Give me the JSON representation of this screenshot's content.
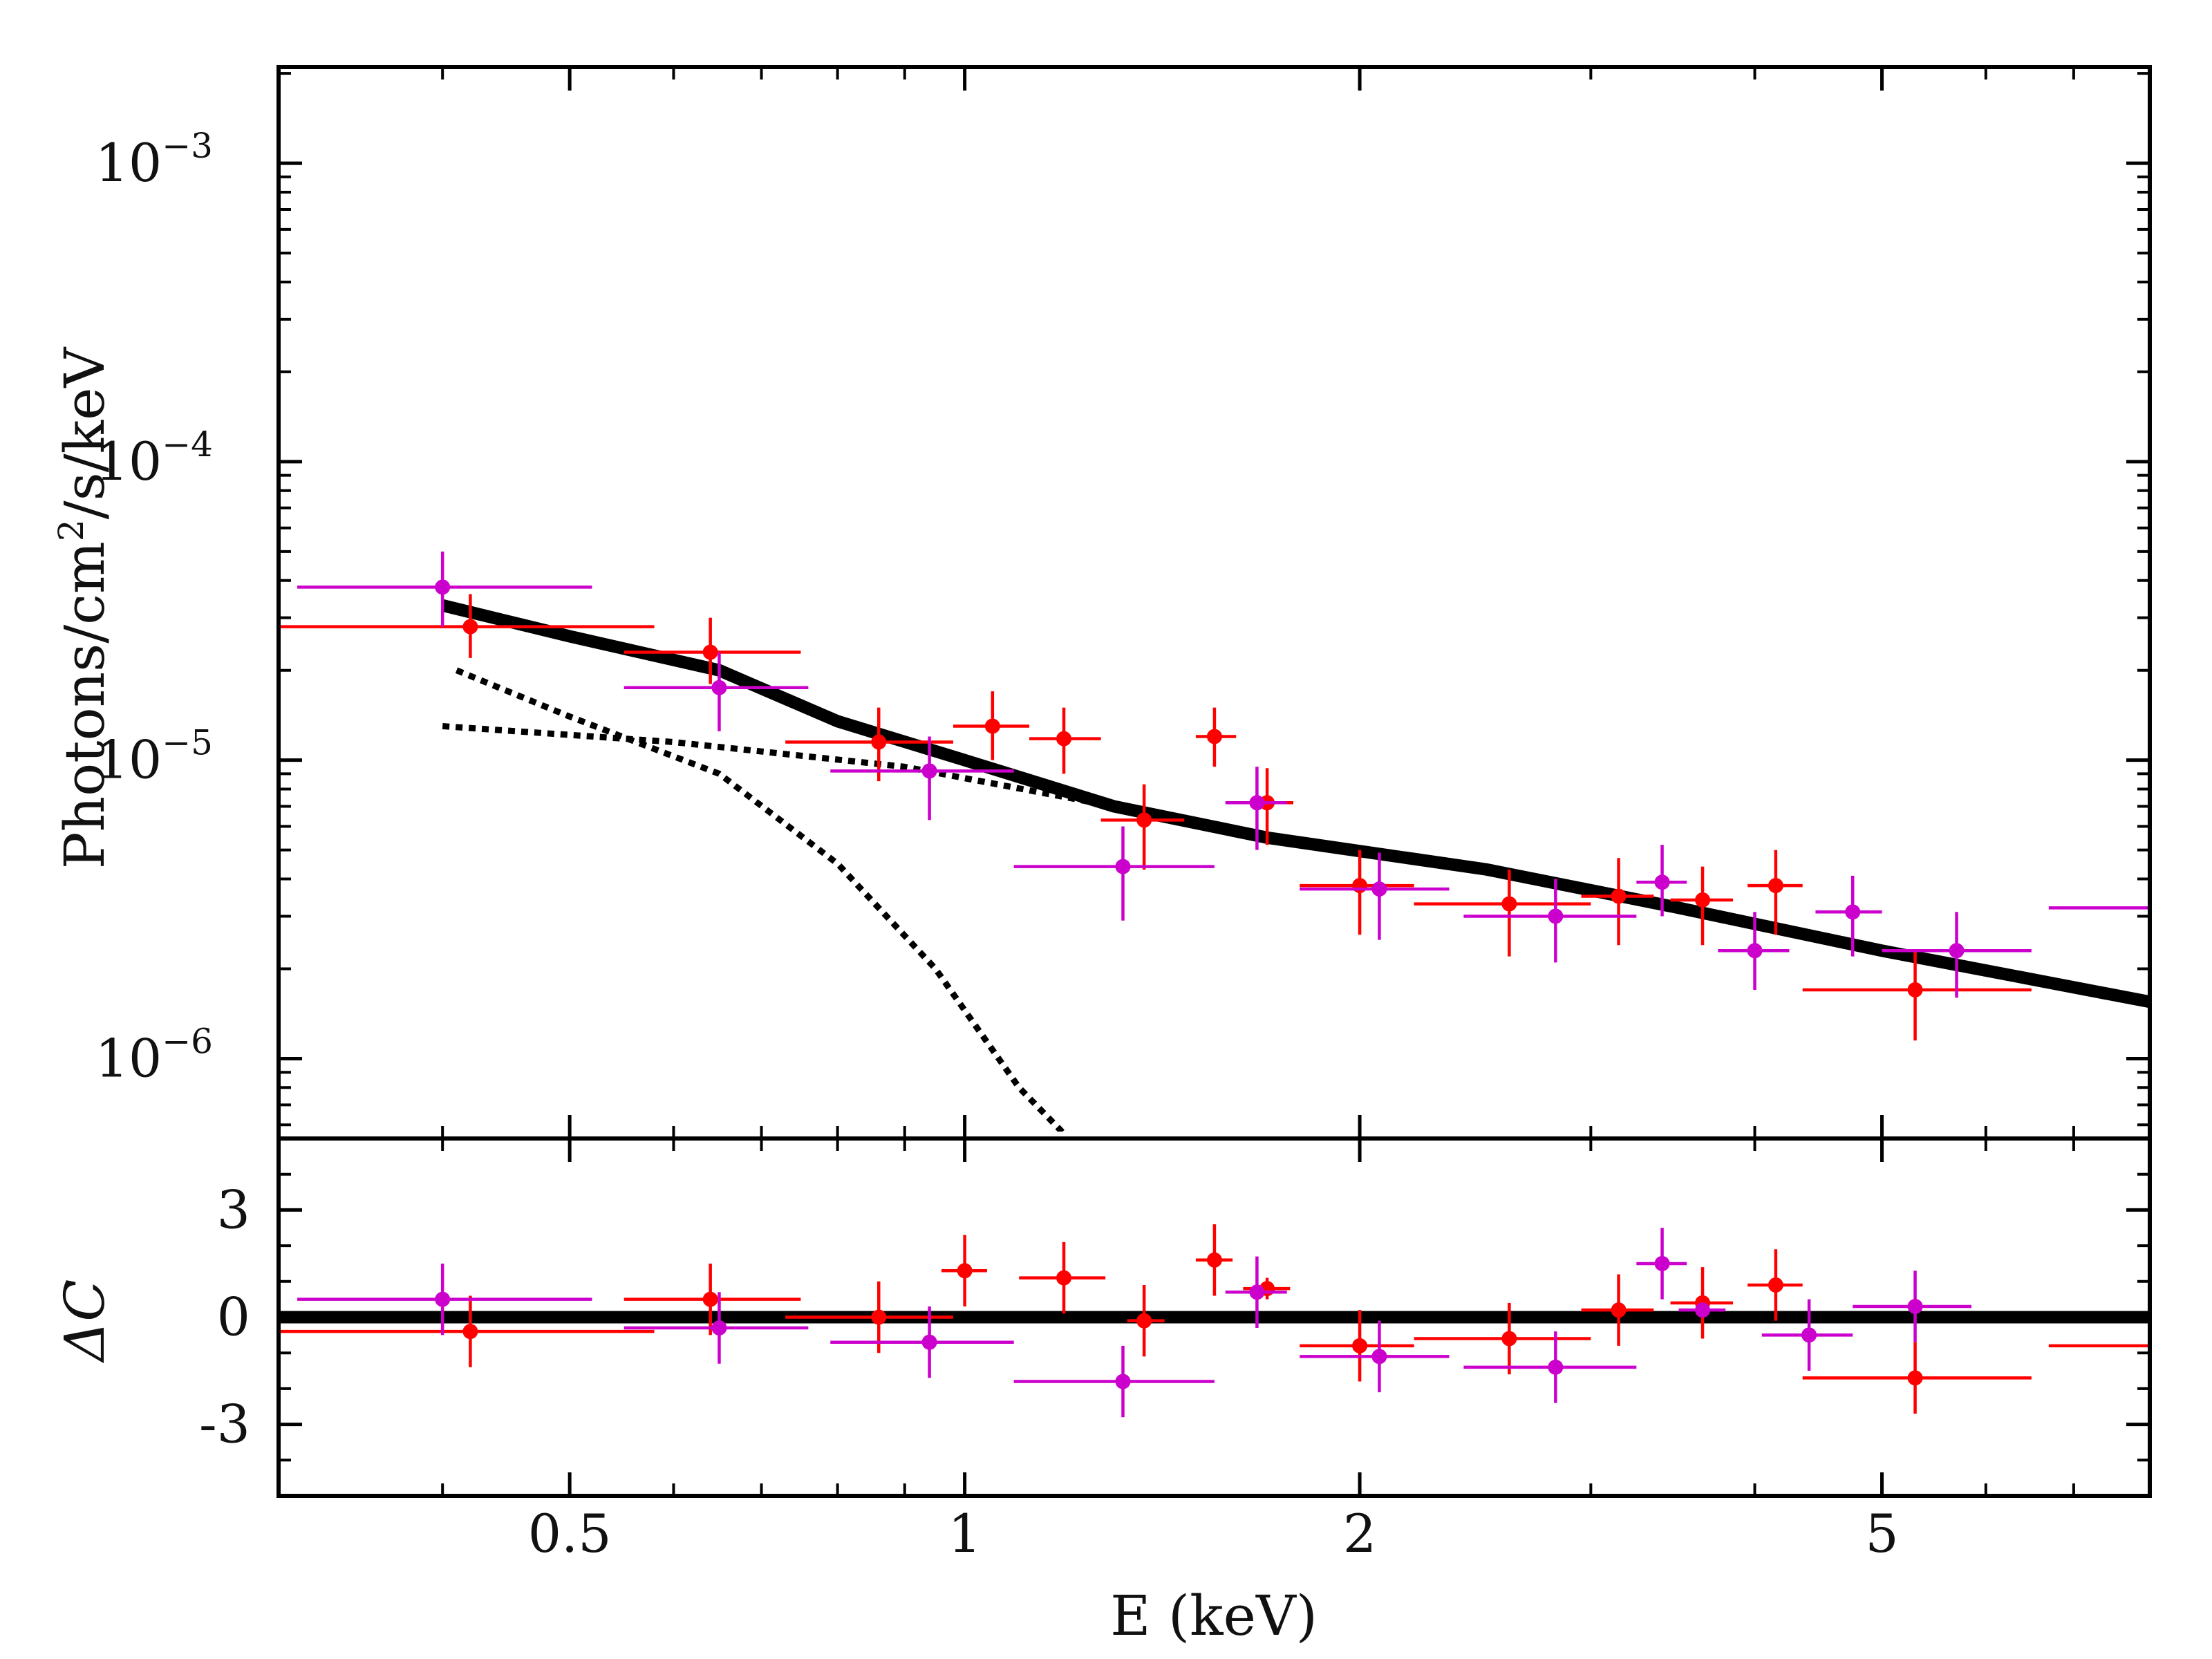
{
  "chart_data": {
    "type": "scatter",
    "colors": {
      "series_red": "#ff0000",
      "series_magenta": "#cc00cc",
      "model": "#000000"
    },
    "x_axis": {
      "label": "E (keV)",
      "scale": "log",
      "range": [
        0.3,
        8.0
      ],
      "ticks": [
        {
          "value": 0.5,
          "label": "0.5"
        },
        {
          "value": 1,
          "label": "1"
        },
        {
          "value": 2,
          "label": "2"
        },
        {
          "value": 5,
          "label": "5"
        }
      ]
    },
    "top_panel": {
      "ylabel": {
        "text": "Photons/cm",
        "sup": "2",
        "rest": "/s/keV"
      },
      "yscale": "log",
      "ylim": [
        5.4e-07,
        0.0021
      ],
      "yticks": [
        {
          "value": 0.001,
          "base": "10",
          "exp": "−3"
        },
        {
          "value": 0.0001,
          "base": "10",
          "exp": "−4"
        },
        {
          "value": 1e-05,
          "base": "10",
          "exp": "−5"
        },
        {
          "value": 1e-06,
          "base": "10",
          "exp": "−6"
        }
      ],
      "model_total": [
        [
          0.4,
          3.3e-05
        ],
        [
          0.5,
          2.6e-05
        ],
        [
          0.65,
          2e-05
        ],
        [
          0.8,
          1.35e-05
        ],
        [
          1.0,
          1e-05
        ],
        [
          1.3,
          7e-06
        ],
        [
          1.7,
          5.5e-06
        ],
        [
          2.5,
          4.3e-06
        ],
        [
          3.5,
          3.2e-06
        ],
        [
          5.0,
          2.3e-06
        ],
        [
          8.0,
          1.55e-06
        ]
      ],
      "model_components": [
        {
          "name": "soft component",
          "points": [
            [
              0.41,
              2e-05
            ],
            [
              0.5,
              1.4e-05
            ],
            [
              0.65,
              9e-06
            ],
            [
              0.8,
              4.5e-06
            ],
            [
              0.95,
              2e-06
            ],
            [
              1.1,
              8e-07
            ],
            [
              1.2,
              5.4e-07
            ]
          ]
        },
        {
          "name": "power-law component",
          "points": [
            [
              0.4,
              1.3e-05
            ],
            [
              0.6,
              1.15e-05
            ],
            [
              0.9,
              9.5e-06
            ],
            [
              1.3,
              7e-06
            ]
          ]
        }
      ],
      "series": [
        {
          "name": "red",
          "points": [
            {
              "x": 0.42,
              "xlo": 0.3,
              "xhi": 0.58,
              "y": 2.8e-05,
              "ylo": 2.2e-05,
              "yhi": 3.6e-05
            },
            {
              "x": 0.64,
              "xlo": 0.55,
              "xhi": 0.75,
              "y": 2.3e-05,
              "ylo": 1.8e-05,
              "yhi": 3e-05
            },
            {
              "x": 0.86,
              "xlo": 0.73,
              "xhi": 0.98,
              "y": 1.15e-05,
              "ylo": 8.5e-06,
              "yhi": 1.5e-05
            },
            {
              "x": 1.05,
              "xlo": 0.98,
              "xhi": 1.12,
              "y": 1.3e-05,
              "ylo": 1e-05,
              "yhi": 1.7e-05
            },
            {
              "x": 1.19,
              "xlo": 1.12,
              "xhi": 1.27,
              "y": 1.18e-05,
              "ylo": 9e-06,
              "yhi": 1.5e-05
            },
            {
              "x": 1.37,
              "xlo": 1.27,
              "xhi": 1.47,
              "y": 6.3e-06,
              "ylo": 4.3e-06,
              "yhi": 8.3e-06
            },
            {
              "x": 1.55,
              "xlo": 1.5,
              "xhi": 1.61,
              "y": 1.2e-05,
              "ylo": 9.5e-06,
              "yhi": 1.5e-05
            },
            {
              "x": 1.7,
              "xlo": 1.62,
              "xhi": 1.78,
              "y": 7.2e-06,
              "ylo": 5.2e-06,
              "yhi": 9.4e-06
            },
            {
              "x": 2.0,
              "xlo": 1.8,
              "xhi": 2.2,
              "y": 3.8e-06,
              "ylo": 2.6e-06,
              "yhi": 5e-06
            },
            {
              "x": 2.6,
              "xlo": 2.2,
              "xhi": 3.0,
              "y": 3.3e-06,
              "ylo": 2.2e-06,
              "yhi": 4.3e-06
            },
            {
              "x": 3.15,
              "xlo": 2.95,
              "xhi": 3.35,
              "y": 3.5e-06,
              "ylo": 2.4e-06,
              "yhi": 4.7e-06
            },
            {
              "x": 3.65,
              "xlo": 3.45,
              "xhi": 3.85,
              "y": 3.4e-06,
              "ylo": 2.4e-06,
              "yhi": 4.4e-06
            },
            {
              "x": 4.15,
              "xlo": 3.95,
              "xhi": 4.35,
              "y": 3.8e-06,
              "ylo": 2.6e-06,
              "yhi": 5e-06
            },
            {
              "x": 5.3,
              "xlo": 4.35,
              "xhi": 6.5,
              "y": 1.7e-06,
              "ylo": 1.15e-06,
              "yhi": 2.3e-06
            }
          ]
        },
        {
          "name": "magenta",
          "points": [
            {
              "x": 0.4,
              "xlo": 0.31,
              "xhi": 0.52,
              "y": 3.8e-05,
              "ylo": 2.8e-05,
              "yhi": 5e-05
            },
            {
              "x": 0.65,
              "xlo": 0.55,
              "xhi": 0.76,
              "y": 1.75e-05,
              "ylo": 1.25e-05,
              "yhi": 2.3e-05
            },
            {
              "x": 0.94,
              "xlo": 0.79,
              "xhi": 1.09,
              "y": 9.2e-06,
              "ylo": 6.3e-06,
              "yhi": 1.2e-05
            },
            {
              "x": 1.32,
              "xlo": 1.09,
              "xhi": 1.55,
              "y": 4.4e-06,
              "ylo": 2.9e-06,
              "yhi": 6e-06
            },
            {
              "x": 1.67,
              "xlo": 1.58,
              "xhi": 1.76,
              "y": 7.2e-06,
              "ylo": 5e-06,
              "yhi": 9.5e-06
            },
            {
              "x": 2.07,
              "xlo": 1.8,
              "xhi": 2.34,
              "y": 3.7e-06,
              "ylo": 2.5e-06,
              "yhi": 4.9e-06
            },
            {
              "x": 2.82,
              "xlo": 2.4,
              "xhi": 3.25,
              "y": 3e-06,
              "ylo": 2.1e-06,
              "yhi": 4e-06
            },
            {
              "x": 3.4,
              "xlo": 3.25,
              "xhi": 3.55,
              "y": 3.9e-06,
              "ylo": 3e-06,
              "yhi": 5.2e-06
            },
            {
              "x": 4.0,
              "xlo": 3.75,
              "xhi": 4.25,
              "y": 2.3e-06,
              "ylo": 1.7e-06,
              "yhi": 3.1e-06
            },
            {
              "x": 4.75,
              "xlo": 4.45,
              "xhi": 5.0,
              "y": 3.1e-06,
              "ylo": 2.2e-06,
              "yhi": 4.1e-06
            },
            {
              "x": 5.7,
              "xlo": 5.0,
              "xhi": 6.5,
              "y": 2.3e-06,
              "ylo": 1.6e-06,
              "yhi": 3.1e-06
            },
            {
              "x": 8.0,
              "xlo": 6.7,
              "xhi": 8.0,
              "y": 3.2e-06,
              "ylo": 3.2e-06,
              "yhi": 3.2e-06
            }
          ]
        }
      ]
    },
    "bottom_panel": {
      "ylabel": "ΔC",
      "ylim": [
        -5,
        5
      ],
      "yticks": [
        {
          "value": 3,
          "label": "3"
        },
        {
          "value": 0,
          "label": "0"
        },
        {
          "value": -3,
          "label": "-3"
        }
      ],
      "zero_line": 0,
      "series": [
        {
          "name": "red",
          "points": [
            {
              "x": 0.42,
              "xlo": 0.3,
              "xhi": 0.58,
              "y": -0.4,
              "err": 1.0
            },
            {
              "x": 0.64,
              "xlo": 0.55,
              "xhi": 0.75,
              "y": 0.5,
              "err": 1.0
            },
            {
              "x": 0.86,
              "xlo": 0.73,
              "xhi": 0.98,
              "y": 0.0,
              "err": 1.0
            },
            {
              "x": 1.0,
              "xlo": 0.96,
              "xhi": 1.04,
              "y": 1.3,
              "err": 1.0
            },
            {
              "x": 1.19,
              "xlo": 1.1,
              "xhi": 1.28,
              "y": 1.1,
              "err": 1.0
            },
            {
              "x": 1.37,
              "xlo": 1.33,
              "xhi": 1.42,
              "y": -0.1,
              "err": 1.0
            },
            {
              "x": 1.55,
              "xlo": 1.5,
              "xhi": 1.6,
              "y": 1.6,
              "err": 1.0
            },
            {
              "x": 1.7,
              "xlo": 1.63,
              "xhi": 1.77,
              "y": 0.8,
              "err": 0.3
            },
            {
              "x": 2.0,
              "xlo": 1.8,
              "xhi": 2.2,
              "y": -0.8,
              "err": 1.0
            },
            {
              "x": 2.6,
              "xlo": 2.2,
              "xhi": 3.0,
              "y": -0.6,
              "err": 1.0
            },
            {
              "x": 3.15,
              "xlo": 2.95,
              "xhi": 3.35,
              "y": 0.2,
              "err": 1.0
            },
            {
              "x": 3.65,
              "xlo": 3.45,
              "xhi": 3.85,
              "y": 0.4,
              "err": 1.0
            },
            {
              "x": 4.15,
              "xlo": 3.95,
              "xhi": 4.35,
              "y": 0.9,
              "err": 1.0
            },
            {
              "x": 5.3,
              "xlo": 4.35,
              "xhi": 6.5,
              "y": -1.7,
              "err": 1.0
            },
            {
              "x": 8.0,
              "xlo": 6.7,
              "xhi": 8.0,
              "y": -0.8,
              "err": 0.0
            }
          ]
        },
        {
          "name": "magenta",
          "points": [
            {
              "x": 0.4,
              "xlo": 0.31,
              "xhi": 0.52,
              "y": 0.5,
              "err": 1.0
            },
            {
              "x": 0.65,
              "xlo": 0.55,
              "xhi": 0.76,
              "y": -0.3,
              "err": 1.0
            },
            {
              "x": 0.94,
              "xlo": 0.79,
              "xhi": 1.09,
              "y": -0.7,
              "err": 1.0
            },
            {
              "x": 1.32,
              "xlo": 1.09,
              "xhi": 1.55,
              "y": -1.8,
              "err": 1.0
            },
            {
              "x": 1.67,
              "xlo": 1.58,
              "xhi": 1.76,
              "y": 0.7,
              "err": 1.0
            },
            {
              "x": 2.07,
              "xlo": 1.8,
              "xhi": 2.34,
              "y": -1.1,
              "err": 1.0
            },
            {
              "x": 2.82,
              "xlo": 2.4,
              "xhi": 3.25,
              "y": -1.4,
              "err": 1.0
            },
            {
              "x": 3.4,
              "xlo": 3.25,
              "xhi": 3.55,
              "y": 1.5,
              "err": 1.0
            },
            {
              "x": 3.65,
              "xlo": 3.5,
              "xhi": 3.8,
              "y": 0.2,
              "err": 0.2
            },
            {
              "x": 4.4,
              "xlo": 4.05,
              "xhi": 4.75,
              "y": -0.5,
              "err": 1.0
            },
            {
              "x": 5.3,
              "xlo": 4.75,
              "xhi": 5.85,
              "y": 0.3,
              "err": 1.0
            }
          ]
        }
      ]
    }
  }
}
